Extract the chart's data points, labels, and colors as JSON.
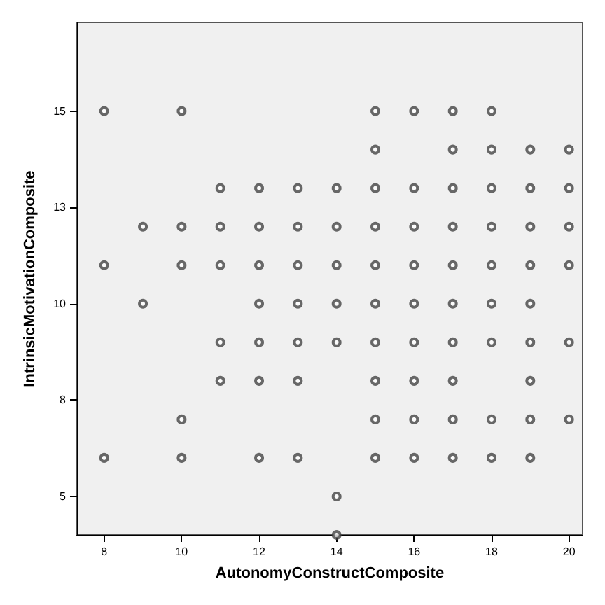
{
  "chart_data": {
    "type": "scatter",
    "xlabel": "AutonomyConstructComposite",
    "ylabel": "IntrinsicMotivationComposite",
    "xlim": [
      7.3,
      20.35
    ],
    "xticks": [
      8,
      10,
      12,
      14,
      16,
      18,
      20
    ],
    "ylim": [
      4,
      17.3
    ],
    "yticks": [
      5,
      {
        "value": 7.5,
        "label": "8"
      },
      10,
      {
        "value": 12.5,
        "label": "13"
      },
      15
    ],
    "grid": false,
    "marker": "circle",
    "series": [
      {
        "color": "#444444",
        "x": [
          8,
          10,
          15,
          16,
          17,
          18,
          15,
          17,
          18,
          19,
          20,
          11,
          12,
          13,
          14,
          15,
          16,
          17,
          18,
          19,
          20,
          9,
          10,
          11,
          12,
          13,
          14,
          15,
          16,
          17,
          18,
          19,
          20,
          8,
          10,
          11,
          12,
          13,
          14,
          15,
          16,
          17,
          18,
          19,
          20,
          9,
          12,
          13,
          14,
          15,
          16,
          17,
          18,
          19,
          11,
          12,
          13,
          14,
          15,
          16,
          17,
          18,
          19,
          20,
          11,
          12,
          13,
          15,
          16,
          17,
          19,
          10,
          15,
          16,
          17,
          18,
          19,
          20,
          8,
          10,
          12,
          13,
          15,
          16,
          17,
          18,
          19,
          14,
          14
        ],
        "values": [
          15,
          15,
          15,
          15,
          15,
          15,
          14,
          14,
          14,
          14,
          14,
          13,
          13,
          13,
          13,
          13,
          13,
          13,
          13,
          13,
          13,
          12,
          12,
          12,
          12,
          12,
          12,
          12,
          12,
          12,
          12,
          12,
          12,
          11,
          11,
          11,
          11,
          11,
          11,
          11,
          11,
          11,
          11,
          11,
          11,
          10,
          10,
          10,
          10,
          10,
          10,
          10,
          10,
          10,
          9,
          9,
          9,
          9,
          9,
          9,
          9,
          9,
          9,
          9,
          8,
          8,
          8,
          8,
          8,
          8,
          8,
          7,
          7,
          7,
          7,
          7,
          7,
          7,
          6,
          6,
          6,
          6,
          6,
          6,
          6,
          6,
          6,
          5,
          4
        ]
      }
    ]
  }
}
